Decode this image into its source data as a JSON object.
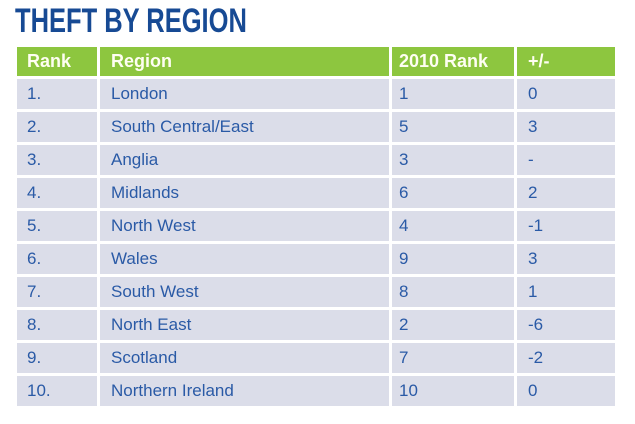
{
  "colors": {
    "title_navy": "#174A94",
    "header_green": "#8DC63F",
    "header_text": "#FEFEF2",
    "row_bg": "#DBDDE9",
    "row_text": "#2A5AA6",
    "page_bg": "#FFFFFF"
  },
  "chart_data": {
    "type": "table",
    "title": "THEFT BY REGION",
    "columns": [
      "Rank",
      "Region",
      "2010 Rank",
      "+/-"
    ],
    "rows": [
      {
        "rank": "1.",
        "region": "London",
        "rank_2010": "1",
        "change": "0"
      },
      {
        "rank": "2.",
        "region": "South Central/East",
        "rank_2010": "5",
        "change": "3"
      },
      {
        "rank": "3.",
        "region": "Anglia",
        "rank_2010": "3",
        "change": "-"
      },
      {
        "rank": "4.",
        "region": "Midlands",
        "rank_2010": "6",
        "change": "2"
      },
      {
        "rank": "5.",
        "region": "North West",
        "rank_2010": "4",
        "change": "-1"
      },
      {
        "rank": "6.",
        "region": "Wales",
        "rank_2010": "9",
        "change": "3"
      },
      {
        "rank": "7.",
        "region": "South West",
        "rank_2010": "8",
        "change": "1"
      },
      {
        "rank": "8.",
        "region": "North East",
        "rank_2010": "2",
        "change": "-6"
      },
      {
        "rank": "9.",
        "region": "Scotland",
        "rank_2010": "7",
        "change": "-2"
      },
      {
        "rank": "10.",
        "region": "Northern Ireland",
        "rank_2010": "10",
        "change": "0"
      }
    ]
  }
}
